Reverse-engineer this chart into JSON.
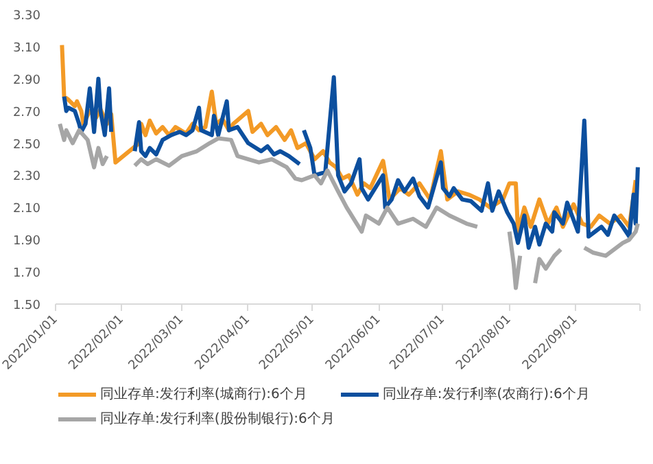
{
  "chart_data": {
    "type": "line",
    "legend": "bottom",
    "line_style": "solid",
    "marker": "none",
    "grid": false,
    "xlim": [
      "2022-01-01",
      "2022-10-01"
    ],
    "xticks": [
      {
        "value": "2022-01-01",
        "label": "2022/01/01"
      },
      {
        "value": "2022-02-01",
        "label": "2022/02/01"
      },
      {
        "value": "2022-03-01",
        "label": "2022/03/01"
      },
      {
        "value": "2022-04-01",
        "label": "2022/04/01"
      },
      {
        "value": "2022-05-01",
        "label": "2022/05/01"
      },
      {
        "value": "2022-06-01",
        "label": "2022/06/01"
      },
      {
        "value": "2022-07-01",
        "label": "2022/07/01"
      },
      {
        "value": "2022-08-01",
        "label": "2022/08/01"
      },
      {
        "value": "2022-09-01",
        "label": "2022/09/01"
      },
      {
        "value": "2022-10-01",
        "label": null
      }
    ],
    "ylim": [
      1.5,
      3.3
    ],
    "yticks": [
      {
        "value": 1.5,
        "label": "1.50"
      },
      {
        "value": 1.7,
        "label": "1.70"
      },
      {
        "value": 1.9,
        "label": "1.90"
      },
      {
        "value": 2.1,
        "label": "2.10"
      },
      {
        "value": 2.3,
        "label": "2.30"
      },
      {
        "value": 2.5,
        "label": "2.50"
      },
      {
        "value": 2.7,
        "label": "2.70"
      },
      {
        "value": 2.9,
        "label": "2.90"
      },
      {
        "value": 3.1,
        "label": "3.10"
      },
      {
        "value": 3.3,
        "label": "3.30"
      }
    ],
    "series": [
      {
        "name": "同业存单:发行利率(城商行):6个月",
        "color": "#f39a26",
        "x": [
          "2022-01-04",
          "2022-01-05",
          "2022-01-07",
          "2022-01-10",
          "2022-01-11",
          "2022-01-13",
          "2022-01-14",
          "2022-01-17",
          "2022-01-20",
          "2022-01-22",
          "2022-01-25",
          "2022-01-27",
          "2022-01-29",
          "2022-02-09",
          "2022-02-10",
          "2022-02-12",
          "2022-02-14",
          "2022-02-17",
          "2022-02-20",
          "2022-02-23",
          "2022-02-26",
          "2022-03-03",
          "2022-03-06",
          "2022-03-09",
          "2022-03-12",
          "2022-03-15",
          "2022-03-17",
          "2022-03-20",
          "2022-03-23",
          "2022-03-25",
          "2022-04-01",
          "2022-04-03",
          "2022-04-07",
          "2022-04-10",
          "2022-04-14",
          "2022-04-18",
          "2022-04-21",
          "2022-04-24",
          "2022-04-28",
          "2022-05-02",
          "2022-05-06",
          "2022-05-09",
          "2022-05-12",
          "2022-05-15",
          "2022-05-18",
          "2022-05-22",
          "2022-05-25",
          "2022-05-28",
          "2022-06-03",
          "2022-06-06",
          "2022-06-11",
          "2022-06-15",
          "2022-06-20",
          "2022-06-25",
          "2022-06-30",
          "2022-07-03",
          "2022-07-08",
          "2022-07-13",
          "2022-07-18",
          "2022-07-23",
          "2022-07-29",
          "2022-08-01",
          "2022-08-04",
          "2022-08-05",
          "2022-08-08",
          "2022-08-11",
          "2022-08-15",
          "2022-08-19",
          "2022-08-23",
          "2022-08-26",
          "2022-08-31",
          "2022-09-04",
          "2022-09-08",
          "2022-09-12",
          "2022-09-17",
          "2022-09-22",
          "2022-09-26",
          "2022-09-29"
        ],
        "values": [
          3.11,
          2.79,
          2.77,
          2.73,
          2.76,
          2.7,
          2.62,
          2.7,
          2.66,
          2.71,
          2.62,
          2.68,
          2.38,
          2.5,
          2.62,
          2.55,
          2.64,
          2.56,
          2.6,
          2.55,
          2.6,
          2.56,
          2.62,
          2.58,
          2.6,
          2.82,
          2.62,
          2.65,
          2.58,
          2.62,
          2.7,
          2.57,
          2.62,
          2.55,
          2.6,
          2.52,
          2.58,
          2.47,
          2.5,
          2.4,
          2.45,
          2.38,
          2.35,
          2.28,
          2.3,
          2.18,
          2.25,
          2.22,
          2.39,
          2.15,
          2.22,
          2.18,
          2.25,
          2.15,
          2.45,
          2.15,
          2.2,
          2.18,
          2.15,
          2.1,
          2.15,
          2.25,
          2.25,
          1.95,
          2.1,
          1.98,
          2.15,
          2.0,
          2.1,
          1.98,
          2.12,
          2.0,
          1.98,
          2.05,
          2.0,
          2.05,
          1.98,
          2.27
        ]
      },
      {
        "name": "同业存单:发行利率(农商行):6个月",
        "color": "#0c4f9e",
        "x": [
          "2022-01-05",
          "2022-01-06",
          "2022-01-07",
          "2022-01-10",
          "2022-01-12",
          "2022-01-13",
          "2022-01-15",
          "2022-01-17",
          "2022-01-19",
          "2022-01-21",
          "2022-01-22",
          "2022-01-24",
          "2022-01-26",
          "2022-01-27",
          "2022-02-01",
          "2022-02-07",
          "2022-02-09",
          "2022-02-10",
          "2022-02-12",
          "2022-02-14",
          "2022-02-17",
          "2022-02-20",
          "2022-02-24",
          "2022-02-28",
          "2022-03-03",
          "2022-03-06",
          "2022-03-09",
          "2022-03-10",
          "2022-03-15",
          "2022-03-16",
          "2022-03-18",
          "2022-03-22",
          "2022-03-23",
          "2022-03-27",
          "2022-04-01",
          "2022-04-07",
          "2022-04-10",
          "2022-04-13",
          "2022-04-16",
          "2022-04-20",
          "2022-04-25",
          "2022-04-26",
          "2022-04-27",
          "2022-04-30",
          "2022-05-02",
          "2022-05-07",
          "2022-05-11",
          "2022-05-13",
          "2022-05-16",
          "2022-05-19",
          "2022-05-23",
          "2022-05-24",
          "2022-05-27",
          "2022-06-03",
          "2022-06-04",
          "2022-06-07",
          "2022-06-10",
          "2022-06-13",
          "2022-06-17",
          "2022-06-20",
          "2022-06-24",
          "2022-06-30",
          "2022-07-01",
          "2022-07-04",
          "2022-07-06",
          "2022-07-10",
          "2022-07-14",
          "2022-07-19",
          "2022-07-22",
          "2022-07-24",
          "2022-07-27",
          "2022-07-31",
          "2022-08-03",
          "2022-08-05",
          "2022-08-08",
          "2022-08-10",
          "2022-08-13",
          "2022-08-15",
          "2022-08-18",
          "2022-08-21",
          "2022-08-22",
          "2022-08-26",
          "2022-08-28",
          "2022-09-02",
          "2022-09-05",
          "2022-09-07",
          "2022-09-10",
          "2022-09-13",
          "2022-09-16",
          "2022-09-19",
          "2022-09-23",
          "2022-09-26",
          "2022-09-28",
          "2022-09-29",
          "2022-09-30"
        ],
        "values": [
          2.79,
          2.7,
          2.72,
          2.7,
          2.62,
          2.57,
          2.62,
          2.84,
          2.57,
          2.9,
          2.7,
          2.55,
          2.84,
          2.57,
          null,
          2.45,
          2.63,
          2.45,
          2.42,
          2.47,
          2.43,
          2.52,
          2.55,
          2.57,
          2.55,
          2.58,
          2.72,
          2.58,
          2.55,
          2.67,
          2.55,
          2.76,
          2.58,
          2.6,
          2.5,
          2.45,
          2.48,
          2.43,
          2.45,
          2.42,
          2.37,
          null,
          2.58,
          2.47,
          2.3,
          2.32,
          2.91,
          2.3,
          2.2,
          2.25,
          2.4,
          2.22,
          2.15,
          2.3,
          2.1,
          2.15,
          2.27,
          2.2,
          2.28,
          2.17,
          2.1,
          2.38,
          2.22,
          2.17,
          2.22,
          2.15,
          2.14,
          2.08,
          2.25,
          2.08,
          2.2,
          2.07,
          2.0,
          1.88,
          2.05,
          1.85,
          1.98,
          1.87,
          2.0,
          1.95,
          2.07,
          2.0,
          2.13,
          1.95,
          2.64,
          1.92,
          1.95,
          1.98,
          1.93,
          2.05,
          1.98,
          1.92,
          2.18,
          2.0,
          2.35
        ]
      },
      {
        "name": "同业存单:发行利率(股份制银行):6个月",
        "color": "#a6a6a6",
        "x": [
          "2022-01-03",
          "2022-01-05",
          "2022-01-06",
          "2022-01-09",
          "2022-01-12",
          "2022-01-16",
          "2022-01-19",
          "2022-01-21",
          "2022-01-23",
          "2022-01-25",
          "2022-01-30",
          "2022-02-07",
          "2022-02-10",
          "2022-02-13",
          "2022-02-17",
          "2022-02-23",
          "2022-03-01",
          "2022-03-08",
          "2022-03-14",
          "2022-03-18",
          "2022-03-24",
          "2022-03-27",
          "2022-04-06",
          "2022-04-12",
          "2022-04-19",
          "2022-04-23",
          "2022-04-26",
          "2022-05-02",
          "2022-05-05",
          "2022-05-08",
          "2022-05-13",
          "2022-05-17",
          "2022-05-24",
          "2022-05-26",
          "2022-06-01",
          "2022-06-05",
          "2022-06-10",
          "2022-06-17",
          "2022-06-23",
          "2022-06-28",
          "2022-07-04",
          "2022-07-12",
          "2022-07-17",
          "2022-07-24",
          "2022-08-01",
          "2022-08-03",
          "2022-08-04",
          "2022-08-06",
          "2022-08-09",
          "2022-08-13",
          "2022-08-15",
          "2022-08-18",
          "2022-08-22",
          "2022-08-25",
          "2022-09-01",
          "2022-09-05",
          "2022-09-09",
          "2022-09-15",
          "2022-09-20",
          "2022-09-23",
          "2022-09-26",
          "2022-09-29",
          "2022-09-30"
        ],
        "values": [
          2.62,
          2.52,
          2.58,
          2.5,
          2.58,
          2.52,
          2.35,
          2.47,
          2.37,
          2.42,
          null,
          2.36,
          2.4,
          2.37,
          2.4,
          2.36,
          2.42,
          2.45,
          2.5,
          2.53,
          2.52,
          2.42,
          2.38,
          2.4,
          2.35,
          2.28,
          2.27,
          2.3,
          2.25,
          2.33,
          2.2,
          2.1,
          1.95,
          2.05,
          2.0,
          2.1,
          2.0,
          2.03,
          1.98,
          2.1,
          2.05,
          2.0,
          1.98,
          null,
          1.95,
          1.75,
          1.6,
          1.8,
          null,
          1.63,
          1.78,
          1.72,
          1.8,
          1.84,
          null,
          1.85,
          1.82,
          1.8,
          1.85,
          1.88,
          1.9,
          1.95,
          2.0
        ]
      }
    ]
  }
}
